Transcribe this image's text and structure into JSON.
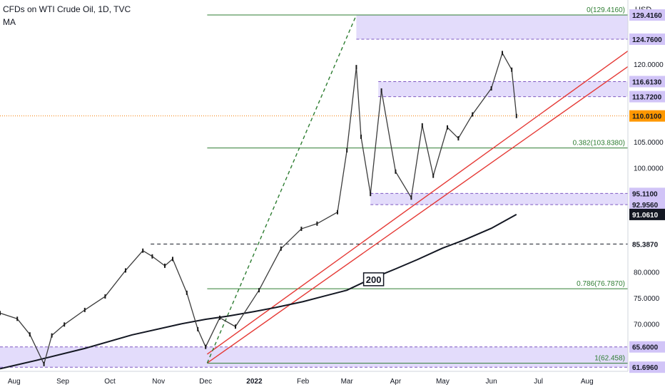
{
  "header": {
    "title": "CFDs on WTI Crude Oil, 1D, TVC",
    "indicator": "MA",
    "currency": "USD"
  },
  "chart_data": {
    "type": "candlestick",
    "title": "CFDs on WTI Crude Oil, 1D, TVC",
    "currency": "USD",
    "y_range": [
      60.9,
      132.3
    ],
    "x_range": [
      "2021-07-23",
      "2022-08-27"
    ],
    "grid": false,
    "x_ticks": [
      {
        "date": "2021-08-01",
        "label": "Aug"
      },
      {
        "date": "2021-09-01",
        "label": "Sep"
      },
      {
        "date": "2021-10-01",
        "label": "Oct"
      },
      {
        "date": "2021-11-01",
        "label": "Nov"
      },
      {
        "date": "2021-12-01",
        "label": "Dec"
      },
      {
        "date": "2022-01-01",
        "label": "2022"
      },
      {
        "date": "2022-02-01",
        "label": "Feb"
      },
      {
        "date": "2022-03-01",
        "label": "Mar"
      },
      {
        "date": "2022-04-01",
        "label": "Apr"
      },
      {
        "date": "2022-05-01",
        "label": "May"
      },
      {
        "date": "2022-06-01",
        "label": "Jun"
      },
      {
        "date": "2022-07-01",
        "label": "Jul"
      },
      {
        "date": "2022-08-01",
        "label": "Aug"
      }
    ],
    "y_ticks": [
      "120.0000",
      "105.0000",
      "100.0000",
      "80.0000",
      "75.0000",
      "70.0000"
    ],
    "price_labels": [
      {
        "value": 129.416,
        "label": "129.4160",
        "style": "zone"
      },
      {
        "value": 124.76,
        "label": "124.7600",
        "style": "zone"
      },
      {
        "value": 116.613,
        "label": "116.6130",
        "style": "zone"
      },
      {
        "value": 113.72,
        "label": "113.7200",
        "style": "zone"
      },
      {
        "value": 110.01,
        "label": "110.0100",
        "style": "last"
      },
      {
        "value": 95.11,
        "label": "95.1100",
        "style": "zone"
      },
      {
        "value": 92.956,
        "label": "92.9560",
        "style": "zone"
      },
      {
        "value": 91.061,
        "label": "91.0610",
        "style": "ma"
      },
      {
        "value": 85.387,
        "label": "85.3870",
        "style": "level"
      },
      {
        "value": 65.6,
        "label": "65.6000",
        "style": "zone"
      },
      {
        "value": 61.696,
        "label": "61.6960",
        "style": "zone"
      }
    ],
    "zones": [
      {
        "from": 124.76,
        "to": 129.416,
        "start": "2022-03-07",
        "end": "2022-08-27"
      },
      {
        "from": 113.72,
        "to": 116.613,
        "start": "2022-03-21",
        "end": "2022-08-27"
      },
      {
        "from": 92.956,
        "to": 95.11,
        "start": "2022-03-16",
        "end": "2022-08-27"
      },
      {
        "from": 61.696,
        "to": 65.6,
        "start": "2021-07-23",
        "end": "2022-08-27"
      }
    ],
    "fibonacci": {
      "start": "2021-12-02",
      "end": "2022-08-27",
      "levels": [
        {
          "ratio": "0",
          "value": 129.416,
          "label": "0(129.4160)"
        },
        {
          "ratio": "0.382",
          "value": 103.838,
          "label": "0.382(103.8380)"
        },
        {
          "ratio": "0.786",
          "value": 76.787,
          "label": "0.786(76.7870)"
        },
        {
          "ratio": "1",
          "value": 62.458,
          "label": "1(62.458)"
        }
      ]
    },
    "horizontal_levels": [
      {
        "value": 85.387,
        "start": "2021-10-27",
        "end": "2022-08-27",
        "style": "dashed",
        "color": "#131722"
      },
      {
        "value": 110.01,
        "start": "2021-07-23",
        "end": "2022-08-27",
        "style": "dotted",
        "color": "#f57c00"
      }
    ],
    "trendlines": [
      {
        "from": {
          "date": "2021-12-02",
          "value": 62.5
        },
        "to": {
          "date": "2022-08-27",
          "value": 119.5
        },
        "color": "#e53935"
      },
      {
        "from": {
          "date": "2021-12-02",
          "value": 64.2
        },
        "to": {
          "date": "2022-08-27",
          "value": 122.5
        },
        "color": "#e53935"
      },
      {
        "from": {
          "date": "2021-12-02",
          "value": 62.5
        },
        "to": {
          "date": "2022-03-07",
          "value": 129.416
        },
        "color": "#2e7d32",
        "style": "dashed"
      }
    ],
    "moving_average": {
      "name": "MA",
      "label": "200",
      "label_at": {
        "date": "2022-03-18",
        "value": 78.6
      },
      "points": [
        {
          "date": "2021-07-23",
          "value": 61.4
        },
        {
          "date": "2021-08-15",
          "value": 63.0
        },
        {
          "date": "2021-09-15",
          "value": 65.3
        },
        {
          "date": "2021-10-15",
          "value": 67.9
        },
        {
          "date": "2021-11-15",
          "value": 70.0
        },
        {
          "date": "2021-12-01",
          "value": 70.9
        },
        {
          "date": "2021-12-15",
          "value": 71.5
        },
        {
          "date": "2022-01-01",
          "value": 72.4
        },
        {
          "date": "2022-01-15",
          "value": 73.2
        },
        {
          "date": "2022-02-01",
          "value": 74.3
        },
        {
          "date": "2022-02-15",
          "value": 75.4
        },
        {
          "date": "2022-03-01",
          "value": 76.5
        },
        {
          "date": "2022-03-15",
          "value": 78.5
        },
        {
          "date": "2022-04-01",
          "value": 80.6
        },
        {
          "date": "2022-04-15",
          "value": 82.4
        },
        {
          "date": "2022-05-01",
          "value": 84.6
        },
        {
          "date": "2022-05-15",
          "value": 86.2
        },
        {
          "date": "2022-06-01",
          "value": 88.4
        },
        {
          "date": "2022-06-17",
          "value": 91.06
        }
      ]
    },
    "price_path": [
      {
        "date": "2021-07-23",
        "value": 72.1
      },
      {
        "date": "2021-08-03",
        "value": 71.0
      },
      {
        "date": "2021-08-11",
        "value": 68.0
      },
      {
        "date": "2021-08-20",
        "value": 62.3
      },
      {
        "date": "2021-08-25",
        "value": 67.8
      },
      {
        "date": "2021-09-02",
        "value": 69.9
      },
      {
        "date": "2021-09-15",
        "value": 72.7
      },
      {
        "date": "2021-09-28",
        "value": 75.3
      },
      {
        "date": "2021-10-11",
        "value": 80.3
      },
      {
        "date": "2021-10-22",
        "value": 84.1
      },
      {
        "date": "2021-10-28",
        "value": 83.0
      },
      {
        "date": "2021-11-05",
        "value": 81.2
      },
      {
        "date": "2021-11-10",
        "value": 82.5
      },
      {
        "date": "2021-11-19",
        "value": 76.0
      },
      {
        "date": "2021-11-26",
        "value": 69.0
      },
      {
        "date": "2021-12-01",
        "value": 65.6
      },
      {
        "date": "2021-12-10",
        "value": 71.2
      },
      {
        "date": "2021-12-20",
        "value": 69.5
      },
      {
        "date": "2022-01-04",
        "value": 76.5
      },
      {
        "date": "2022-01-18",
        "value": 84.5
      },
      {
        "date": "2022-01-31",
        "value": 88.3
      },
      {
        "date": "2022-02-10",
        "value": 89.3
      },
      {
        "date": "2022-02-23",
        "value": 91.5
      },
      {
        "date": "2022-03-01",
        "value": 103.4
      },
      {
        "date": "2022-03-07",
        "value": 119.4
      },
      {
        "date": "2022-03-10",
        "value": 106.0
      },
      {
        "date": "2022-03-16",
        "value": 95.0
      },
      {
        "date": "2022-03-23",
        "value": 114.9
      },
      {
        "date": "2022-04-01",
        "value": 99.3
      },
      {
        "date": "2022-04-11",
        "value": 94.3
      },
      {
        "date": "2022-04-18",
        "value": 108.2
      },
      {
        "date": "2022-04-25",
        "value": 98.5
      },
      {
        "date": "2022-05-04",
        "value": 107.8
      },
      {
        "date": "2022-05-11",
        "value": 105.7
      },
      {
        "date": "2022-05-20",
        "value": 110.3
      },
      {
        "date": "2022-06-01",
        "value": 115.3
      },
      {
        "date": "2022-06-08",
        "value": 122.1
      },
      {
        "date": "2022-06-14",
        "value": 118.9
      },
      {
        "date": "2022-06-17",
        "value": 110.0
      }
    ]
  }
}
